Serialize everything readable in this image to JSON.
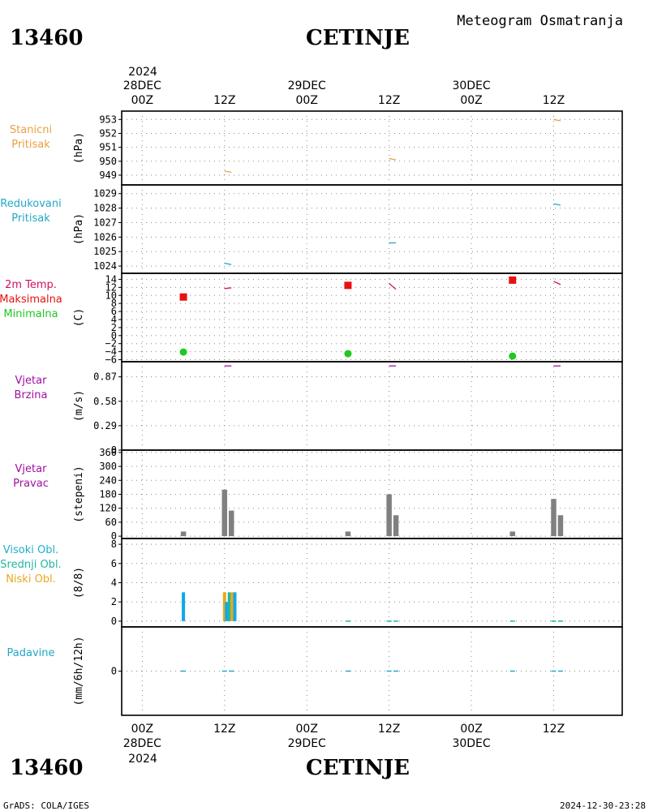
{
  "header": {
    "station_code": "13460",
    "station_name": "CETINJE",
    "title": "Meteogram Osmatranja"
  },
  "footer": {
    "credit": "GrADS: COLA/IGES",
    "timestamp": "2024-12-30-23:28"
  },
  "time_axis": {
    "top_year": "2024",
    "bottom_year": "2024",
    "ticks": [
      {
        "hour": 0,
        "label": "00Z",
        "date": "28DEC"
      },
      {
        "hour": 12,
        "label": "12Z",
        "date": ""
      },
      {
        "hour": 24,
        "label": "00Z",
        "date": "29DEC"
      },
      {
        "hour": 36,
        "label": "12Z",
        "date": ""
      },
      {
        "hour": 48,
        "label": "00Z",
        "date": "30DEC"
      },
      {
        "hour": 60,
        "label": "12Z",
        "date": ""
      }
    ],
    "range_hours": [
      -3,
      70
    ]
  },
  "colors": {
    "station_pressure": "#e8a040",
    "reduced_pressure": "#20a8c8",
    "temperature": "#d01060",
    "max_temp": "#e81010",
    "min_temp": "#20c820",
    "wind": "#a010a0",
    "wind_dir_bar": "#808080",
    "high_cloud": "#20b0c8",
    "mid_cloud": "#20b8a0",
    "low_cloud": "#e8a820",
    "cloud_bar": "#10a8e8",
    "precip": "#20a8c8"
  },
  "chart_data": [
    {
      "type": "line",
      "title": "Stanicni Pritisak",
      "label_lines": [
        "Stanicni",
        "Pritisak"
      ],
      "label_color": "station_pressure",
      "ylabel": "(hPa)",
      "ylim": [
        948.3,
        953.6
      ],
      "yticks": [
        949,
        950,
        951,
        952,
        953
      ],
      "grid": true,
      "series": [
        {
          "color": "station_pressure",
          "segments": [
            {
              "x": [
                12,
                13
              ],
              "y": [
                949.3,
                949.2
              ]
            },
            {
              "x": [
                36,
                37
              ],
              "y": [
                950.2,
                950.1
              ]
            },
            {
              "x": [
                60,
                61
              ],
              "y": [
                953.0,
                952.9
              ]
            }
          ]
        }
      ]
    },
    {
      "type": "line",
      "title": "Redukovani Pritisak",
      "label_lines": [
        "Redukovani",
        "Pritisak"
      ],
      "label_color": "reduced_pressure",
      "ylabel": "(hPa)",
      "ylim": [
        1023.5,
        1029.6
      ],
      "yticks": [
        1024,
        1025,
        1026,
        1027,
        1028,
        1029
      ],
      "grid": true,
      "series": [
        {
          "color": "reduced_pressure",
          "segments": [
            {
              "x": [
                12,
                13
              ],
              "y": [
                1024.2,
                1024.1
              ]
            },
            {
              "x": [
                36,
                37
              ],
              "y": [
                1025.6,
                1025.6
              ]
            },
            {
              "x": [
                60,
                61
              ],
              "y": [
                1028.3,
                1028.2
              ]
            }
          ]
        }
      ]
    },
    {
      "type": "scatter",
      "title": "2m Temp.",
      "label_lines": [
        "2m Temp.",
        "Maksimalna",
        "Minimalna"
      ],
      "label_colors": [
        "temperature",
        "max_temp",
        "min_temp"
      ],
      "ylabel": "(C)",
      "ylim": [
        -6.5,
        15.5
      ],
      "yticks": [
        -6,
        -4,
        -2,
        0,
        2,
        4,
        6,
        8,
        10,
        12,
        14
      ],
      "ytick_labels": [
        "−6",
        "−4",
        "−2",
        "0",
        "2",
        "4",
        "6",
        "8",
        "10",
        "12",
        "14"
      ],
      "grid": true,
      "temp_segments": [
        {
          "x": [
            12,
            13
          ],
          "y": [
            11.7,
            11.9
          ]
        },
        {
          "x": [
            36,
            37
          ],
          "y": [
            13.0,
            11.5
          ]
        },
        {
          "x": [
            60,
            61
          ],
          "y": [
            13.5,
            12.7
          ]
        }
      ],
      "max_points": [
        {
          "x": 6,
          "y": 9.6
        },
        {
          "x": 30,
          "y": 12.5
        },
        {
          "x": 54,
          "y": 13.8
        }
      ],
      "min_points": [
        {
          "x": 6,
          "y": -4.1
        },
        {
          "x": 30,
          "y": -4.5
        },
        {
          "x": 54,
          "y": -5.1
        }
      ]
    },
    {
      "type": "line",
      "title": "Vjetar Brzina",
      "label_lines": [
        "Vjetar",
        "Brzina"
      ],
      "label_color": "wind",
      "ylabel": "(m/s)",
      "ylim": [
        0,
        1.05
      ],
      "yticks": [
        0,
        0.29,
        0.58,
        0.87
      ],
      "grid": true,
      "series": [
        {
          "color": "wind",
          "segments": [
            {
              "x": [
                12,
                13
              ],
              "y": [
                1.0,
                1.0
              ]
            },
            {
              "x": [
                36,
                37
              ],
              "y": [
                1.0,
                1.0
              ]
            },
            {
              "x": [
                60,
                61
              ],
              "y": [
                1.0,
                1.0
              ]
            }
          ]
        }
      ]
    },
    {
      "type": "bar",
      "title": "Vjetar Pravac",
      "label_lines": [
        "Vjetar",
        "Pravac"
      ],
      "label_color": "wind",
      "ylabel": "(stepeni)",
      "ylim": [
        -10,
        370
      ],
      "yticks": [
        0,
        60,
        120,
        180,
        240,
        300,
        360
      ],
      "grid": true,
      "bars": [
        {
          "x": 6,
          "value": 20
        },
        {
          "x": 12,
          "value": 200
        },
        {
          "x": 13,
          "value": 110
        },
        {
          "x": 30,
          "value": 20
        },
        {
          "x": 36,
          "value": 180
        },
        {
          "x": 37,
          "value": 90
        },
        {
          "x": 54,
          "value": 20
        },
        {
          "x": 60,
          "value": 160
        },
        {
          "x": 61,
          "value": 90
        }
      ]
    },
    {
      "type": "bar",
      "title": "Oblacnost",
      "label_lines": [
        "Visoki Obl.",
        "Srednji Obl.",
        "Niski Obl."
      ],
      "label_colors": [
        "high_cloud",
        "mid_cloud",
        "low_cloud"
      ],
      "ylabel": "(8/8)",
      "ylim": [
        -0.6,
        8.6
      ],
      "yticks": [
        0,
        2,
        4,
        6,
        8
      ],
      "grid": true,
      "bars": [
        {
          "x": 6,
          "value": 3,
          "color": "cloud_bar"
        },
        {
          "x": 12,
          "value": 3,
          "color": "low_cloud"
        },
        {
          "x": 12.3,
          "value": 2,
          "color": "cloud_bar"
        },
        {
          "x": 12.7,
          "value": 3,
          "color": "mid_cloud"
        },
        {
          "x": 13.1,
          "value": 3,
          "color": "low_cloud"
        },
        {
          "x": 13.5,
          "value": 3,
          "color": "cloud_bar"
        }
      ],
      "zero_marks": [
        30,
        36,
        37,
        54,
        60,
        61
      ]
    },
    {
      "type": "bar",
      "title": "Padavine",
      "label_lines": [
        "Padavine"
      ],
      "label_color": "precip",
      "ylabel": "(mm/6h/12h)",
      "ylim": [
        -1.6,
        1.6
      ],
      "yticks": [
        0
      ],
      "grid": true,
      "zero_marks": [
        6,
        12,
        13,
        30,
        36,
        37,
        54,
        60,
        61
      ]
    }
  ]
}
